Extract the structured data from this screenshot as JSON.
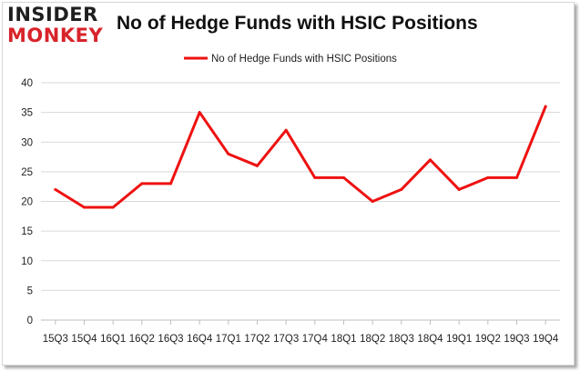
{
  "brand": {
    "line1": "INSIDER",
    "line2": "MONKEY",
    "colors": {
      "dark": "#1f1f1f",
      "accent": "#d8232a"
    }
  },
  "chart_data": {
    "type": "line",
    "title": "No of Hedge Funds with HSIC Positions",
    "xlabel": "",
    "ylabel": "",
    "categories": [
      "15Q3",
      "15Q4",
      "16Q1",
      "16Q2",
      "16Q3",
      "16Q4",
      "17Q1",
      "17Q2",
      "17Q3",
      "17Q4",
      "18Q1",
      "18Q2",
      "18Q3",
      "18Q4",
      "19Q1",
      "19Q2",
      "19Q3",
      "19Q4"
    ],
    "series": [
      {
        "name": "No of Hedge Funds with HSIC Positions",
        "color": "#ee1111",
        "values": [
          22,
          19,
          19,
          23,
          23,
          35,
          28,
          26,
          32,
          24,
          24,
          20,
          22,
          27,
          22,
          24,
          24,
          36
        ]
      }
    ],
    "ylim": [
      0,
      40
    ],
    "yticks": [
      0,
      5,
      10,
      15,
      20,
      25,
      30,
      35,
      40
    ],
    "grid": "horizontal",
    "legend": "top-center"
  }
}
